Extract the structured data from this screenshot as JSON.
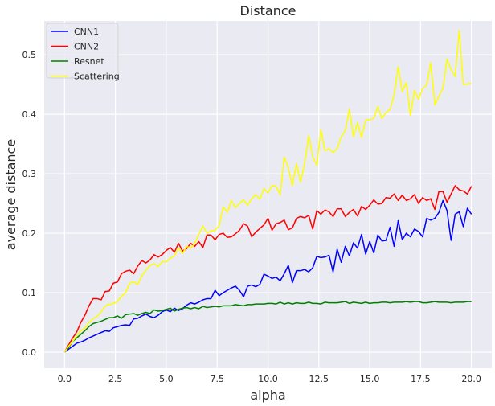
{
  "chart_data": {
    "type": "line",
    "title": "Distance",
    "xlabel": "alpha",
    "ylabel": "average distance",
    "xlim": [
      -1.0,
      21.0
    ],
    "ylim": [
      -0.027,
      0.557
    ],
    "xticks": [
      0.0,
      2.5,
      5.0,
      7.5,
      10.0,
      12.5,
      15.0,
      17.5,
      20.0
    ],
    "xtick_labels": [
      "0.0",
      "2.5",
      "5.0",
      "7.5",
      "10.0",
      "12.5",
      "15.0",
      "17.5",
      "20.0"
    ],
    "yticks": [
      0.0,
      0.1,
      0.2,
      0.3,
      0.4,
      0.5
    ],
    "ytick_labels": [
      "0.0",
      "0.1",
      "0.2",
      "0.3",
      "0.4",
      "0.5"
    ],
    "grid": true,
    "background": "#eaeaf2",
    "legend_position": "top-left",
    "x": [
      0.0,
      0.2,
      0.4,
      0.6,
      0.8,
      1.0,
      1.2,
      1.4,
      1.6,
      1.8,
      2.0,
      2.2,
      2.4,
      2.6,
      2.8,
      3.0,
      3.2,
      3.4,
      3.6,
      3.8,
      4.0,
      4.2,
      4.4,
      4.6,
      4.8,
      5.0,
      5.2,
      5.4,
      5.6,
      5.8,
      6.0,
      6.2,
      6.4,
      6.6,
      6.8,
      7.0,
      7.2,
      7.4,
      7.6,
      7.8,
      8.0,
      8.2,
      8.4,
      8.6,
      8.8,
      9.0,
      9.2,
      9.4,
      9.6,
      9.8,
      10.0,
      10.2,
      10.4,
      10.6,
      10.8,
      11.0,
      11.2,
      11.4,
      11.6,
      11.8,
      12.0,
      12.2,
      12.4,
      12.6,
      12.8,
      13.0,
      13.2,
      13.4,
      13.6,
      13.8,
      14.0,
      14.2,
      14.4,
      14.6,
      14.8,
      15.0,
      15.2,
      15.4,
      15.6,
      15.8,
      16.0,
      16.2,
      16.4,
      16.6,
      16.8,
      17.0,
      17.2,
      17.4,
      17.6,
      17.8,
      18.0,
      18.2,
      18.4,
      18.6,
      18.8,
      19.0,
      19.2,
      19.4,
      19.6,
      19.8,
      20.0
    ],
    "series": [
      {
        "name": "CNN1",
        "color": "#0000ff",
        "values": [
          0.0,
          0.005,
          0.01,
          0.015,
          0.017,
          0.02,
          0.024,
          0.027,
          0.03,
          0.033,
          0.036,
          0.035,
          0.041,
          0.043,
          0.045,
          0.046,
          0.045,
          0.056,
          0.057,
          0.061,
          0.064,
          0.06,
          0.058,
          0.062,
          0.068,
          0.071,
          0.068,
          0.074,
          0.07,
          0.073,
          0.079,
          0.083,
          0.081,
          0.084,
          0.088,
          0.09,
          0.09,
          0.104,
          0.095,
          0.1,
          0.104,
          0.108,
          0.111,
          0.104,
          0.093,
          0.111,
          0.113,
          0.11,
          0.114,
          0.131,
          0.128,
          0.124,
          0.126,
          0.12,
          0.132,
          0.146,
          0.117,
          0.137,
          0.137,
          0.139,
          0.135,
          0.142,
          0.161,
          0.159,
          0.16,
          0.163,
          0.135,
          0.173,
          0.151,
          0.178,
          0.162,
          0.184,
          0.175,
          0.198,
          0.165,
          0.186,
          0.167,
          0.197,
          0.187,
          0.188,
          0.21,
          0.178,
          0.221,
          0.189,
          0.2,
          0.194,
          0.207,
          0.203,
          0.194,
          0.225,
          0.222,
          0.225,
          0.235,
          0.255,
          0.238,
          0.188,
          0.232,
          0.236,
          0.211,
          0.242,
          0.232
        ]
      },
      {
        "name": "CNN2",
        "color": "#ff0000",
        "values": [
          0.0,
          0.012,
          0.024,
          0.034,
          0.05,
          0.062,
          0.078,
          0.09,
          0.09,
          0.088,
          0.102,
          0.103,
          0.116,
          0.118,
          0.132,
          0.136,
          0.138,
          0.132,
          0.145,
          0.154,
          0.15,
          0.155,
          0.164,
          0.16,
          0.164,
          0.171,
          0.176,
          0.168,
          0.183,
          0.17,
          0.174,
          0.183,
          0.178,
          0.186,
          0.176,
          0.197,
          0.197,
          0.189,
          0.198,
          0.2,
          0.193,
          0.194,
          0.199,
          0.205,
          0.216,
          0.212,
          0.194,
          0.202,
          0.208,
          0.214,
          0.225,
          0.205,
          0.216,
          0.218,
          0.222,
          0.206,
          0.209,
          0.225,
          0.228,
          0.226,
          0.23,
          0.207,
          0.238,
          0.232,
          0.239,
          0.236,
          0.228,
          0.241,
          0.241,
          0.228,
          0.235,
          0.24,
          0.229,
          0.245,
          0.24,
          0.247,
          0.256,
          0.249,
          0.25,
          0.26,
          0.259,
          0.266,
          0.255,
          0.264,
          0.255,
          0.258,
          0.265,
          0.25,
          0.26,
          0.255,
          0.258,
          0.24,
          0.27,
          0.27,
          0.252,
          0.266,
          0.28,
          0.273,
          0.271,
          0.266,
          0.279
        ]
      },
      {
        "name": "Resnet",
        "color": "#008000",
        "values": [
          0.0,
          0.008,
          0.018,
          0.024,
          0.03,
          0.036,
          0.043,
          0.048,
          0.05,
          0.052,
          0.055,
          0.058,
          0.058,
          0.061,
          0.057,
          0.063,
          0.064,
          0.065,
          0.062,
          0.065,
          0.067,
          0.065,
          0.071,
          0.069,
          0.07,
          0.072,
          0.074,
          0.069,
          0.072,
          0.074,
          0.075,
          0.073,
          0.075,
          0.073,
          0.077,
          0.075,
          0.076,
          0.077,
          0.076,
          0.078,
          0.078,
          0.078,
          0.08,
          0.079,
          0.078,
          0.08,
          0.08,
          0.081,
          0.081,
          0.081,
          0.082,
          0.082,
          0.081,
          0.084,
          0.081,
          0.083,
          0.081,
          0.083,
          0.082,
          0.082,
          0.084,
          0.082,
          0.082,
          0.081,
          0.084,
          0.083,
          0.083,
          0.083,
          0.084,
          0.085,
          0.082,
          0.084,
          0.083,
          0.082,
          0.084,
          0.082,
          0.083,
          0.083,
          0.084,
          0.084,
          0.083,
          0.084,
          0.084,
          0.084,
          0.085,
          0.084,
          0.085,
          0.085,
          0.083,
          0.083,
          0.084,
          0.085,
          0.084,
          0.084,
          0.084,
          0.083,
          0.084,
          0.084,
          0.084,
          0.085,
          0.085
        ]
      },
      {
        "name": "Scattering",
        "color": "#ffff00",
        "values": [
          0.0,
          0.01,
          0.018,
          0.028,
          0.036,
          0.04,
          0.05,
          0.056,
          0.06,
          0.068,
          0.078,
          0.08,
          0.082,
          0.085,
          0.094,
          0.1,
          0.116,
          0.118,
          0.114,
          0.128,
          0.138,
          0.146,
          0.149,
          0.144,
          0.152,
          0.152,
          0.158,
          0.162,
          0.175,
          0.166,
          0.178,
          0.175,
          0.183,
          0.198,
          0.212,
          0.2,
          0.204,
          0.205,
          0.213,
          0.244,
          0.235,
          0.255,
          0.243,
          0.25,
          0.256,
          0.247,
          0.258,
          0.265,
          0.257,
          0.275,
          0.268,
          0.28,
          0.279,
          0.265,
          0.328,
          0.31,
          0.28,
          0.317,
          0.286,
          0.317,
          0.364,
          0.329,
          0.314,
          0.374,
          0.339,
          0.342,
          0.336,
          0.342,
          0.362,
          0.373,
          0.409,
          0.362,
          0.386,
          0.361,
          0.39,
          0.391,
          0.393,
          0.413,
          0.393,
          0.403,
          0.408,
          0.433,
          0.48,
          0.438,
          0.453,
          0.398,
          0.44,
          0.425,
          0.443,
          0.449,
          0.487,
          0.416,
          0.43,
          0.444,
          0.493,
          0.475,
          0.463,
          0.541,
          0.45,
          0.451,
          0.452
        ]
      }
    ]
  }
}
